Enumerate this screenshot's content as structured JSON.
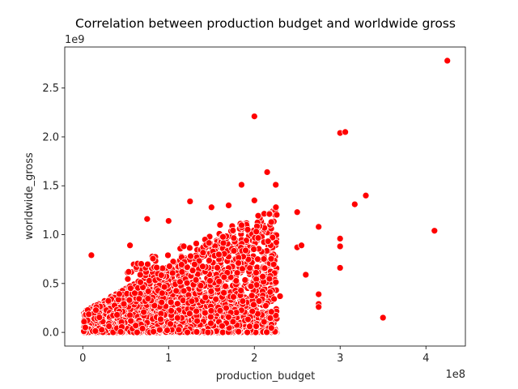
{
  "chart_data": {
    "type": "scatter",
    "title": "Correlation between production budget and worldwide gross",
    "xlabel": "production_budget",
    "ylabel": "worldwide_gross",
    "x_offset_label": "1e8",
    "y_offset_label": "1e9",
    "xlim": [
      -0.21,
      4.46
    ],
    "ylim": [
      -0.14,
      2.92
    ],
    "x_ticks": [
      0,
      1,
      2,
      3,
      4
    ],
    "x_tick_labels": [
      "0",
      "1",
      "2",
      "3",
      "4"
    ],
    "y_ticks": [
      0.0,
      0.5,
      1.0,
      1.5,
      2.0,
      2.5
    ],
    "y_tick_labels": [
      "0.0",
      "0.5",
      "1.0",
      "1.5",
      "2.0",
      "2.5"
    ],
    "grid": false,
    "colors": {
      "marker": "#ff0000",
      "marker_edge": "#ffffff"
    },
    "notable_points": [
      {
        "x": 4.25,
        "y": 2.78
      },
      {
        "x": 2.0,
        "y": 2.21
      },
      {
        "x": 3.0,
        "y": 2.04
      },
      {
        "x": 3.06,
        "y": 2.05
      },
      {
        "x": 2.15,
        "y": 1.64
      },
      {
        "x": 1.85,
        "y": 1.51
      },
      {
        "x": 2.25,
        "y": 1.51
      },
      {
        "x": 3.3,
        "y": 1.4
      },
      {
        "x": 3.17,
        "y": 1.31
      },
      {
        "x": 1.25,
        "y": 1.34
      },
      {
        "x": 2.0,
        "y": 1.35
      },
      {
        "x": 4.1,
        "y": 1.04
      },
      {
        "x": 3.5,
        "y": 0.15
      },
      {
        "x": 2.75,
        "y": 1.08
      },
      {
        "x": 2.5,
        "y": 1.23
      },
      {
        "x": 2.6,
        "y": 0.59
      },
      {
        "x": 3.0,
        "y": 0.66
      },
      {
        "x": 3.0,
        "y": 0.96
      },
      {
        "x": 3.0,
        "y": 0.88
      },
      {
        "x": 2.75,
        "y": 0.39
      },
      {
        "x": 2.75,
        "y": 0.29
      },
      {
        "x": 2.75,
        "y": 0.26
      },
      {
        "x": 0.1,
        "y": 0.79
      },
      {
        "x": 1.0,
        "y": 1.14
      },
      {
        "x": 0.75,
        "y": 1.16
      },
      {
        "x": 0.55,
        "y": 0.89
      },
      {
        "x": 1.3,
        "y": 0.76
      },
      {
        "x": 1.5,
        "y": 1.28
      },
      {
        "x": 1.7,
        "y": 1.3
      },
      {
        "x": 2.3,
        "y": 0.37
      },
      {
        "x": 2.2,
        "y": 0.32
      },
      {
        "x": 1.5,
        "y": 0.0
      },
      {
        "x": 2.0,
        "y": 0.22
      },
      {
        "x": 1.6,
        "y": 1.1
      },
      {
        "x": 1.9,
        "y": 1.12
      },
      {
        "x": 2.1,
        "y": 1.1
      },
      {
        "x": 1.75,
        "y": 1.0
      },
      {
        "x": 2.5,
        "y": 0.87
      },
      {
        "x": 2.55,
        "y": 0.89
      }
    ]
  }
}
